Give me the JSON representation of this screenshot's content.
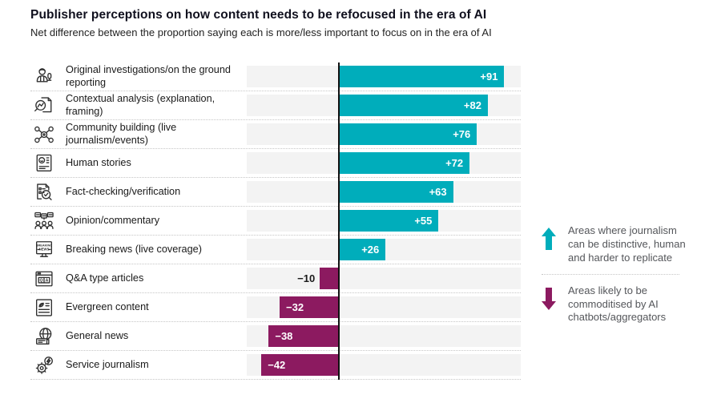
{
  "title": "Publisher perceptions on how content needs to be refocused in the era of AI",
  "subtitle": "Net difference between the proportion saying each is more/less important to focus on in the era of AI",
  "colors": {
    "positive": "#00adbb",
    "negative": "#8c1a60",
    "track": "#f3f3f3",
    "zero_line": "#111111",
    "label_text": "#1a1a1a",
    "legend_text": "#54565a"
  },
  "chart_data": {
    "type": "bar",
    "orientation": "horizontal",
    "title": "Publisher perceptions on how content needs to be refocused in the era of AI",
    "subtitle": "Net difference between the proportion saying each is more/less important to focus on in the era of AI",
    "xlim": [
      -50,
      100
    ],
    "grid": false,
    "categories": [
      "Original investigations/on the ground reporting",
      "Contextual analysis (explanation, framing)",
      "Community building (live journalism/events)",
      "Human stories",
      "Fact-checking/verification",
      "Opinion/commentary",
      "Breaking news (live coverage)",
      "Q&A type articles",
      "Evergreen content",
      "General news",
      "Service journalism"
    ],
    "values": [
      91,
      82,
      76,
      72,
      63,
      55,
      26,
      -10,
      -32,
      -38,
      -42
    ],
    "value_labels": [
      "+91",
      "+82",
      "+76",
      "+72",
      "+63",
      "+55",
      "+26",
      "−10",
      "−32",
      "−38",
      "−42"
    ],
    "icons": [
      "reporter-icon",
      "contextual-analysis-icon",
      "community-icon",
      "human-stories-icon",
      "fact-check-icon",
      "opinion-icon",
      "breaking-news-icon",
      "qa-icon",
      "evergreen-icon",
      "general-news-icon",
      "service-journalism-icon"
    ]
  },
  "legend": {
    "positive": {
      "direction": "up",
      "label": "Areas where journalism can be distinctive, human and harder to replicate"
    },
    "negative": {
      "direction": "down",
      "label": "Areas likely to be commoditised by AI chatbots/aggregators"
    }
  }
}
